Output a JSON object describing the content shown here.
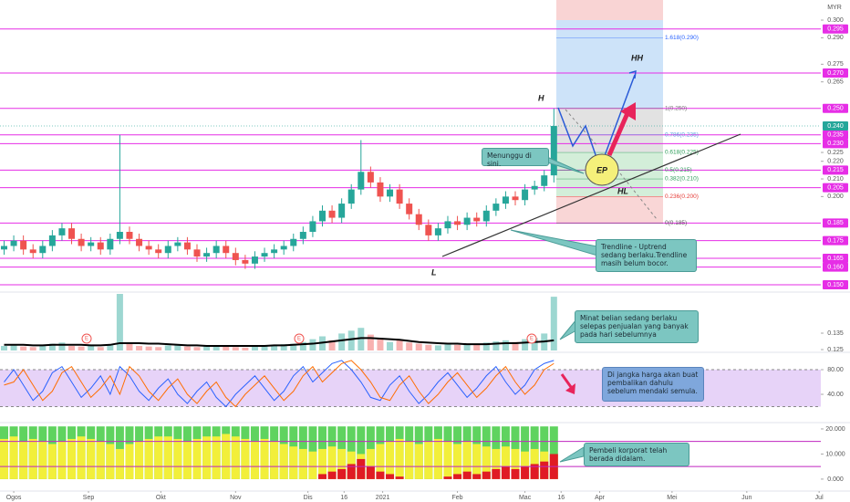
{
  "chart_data": [
    {
      "type": "candlestick",
      "currency": "MYR",
      "x": [
        -4,
        0,
        4,
        8,
        12,
        16,
        20,
        24,
        28,
        32,
        36,
        40,
        44,
        48,
        52,
        56,
        60,
        64,
        68,
        72,
        76,
        80,
        84,
        88,
        92,
        96,
        100,
        104,
        108,
        112,
        116,
        120,
        124,
        128,
        132,
        136,
        140,
        144,
        148,
        152,
        156,
        160,
        164,
        168,
        172,
        176,
        180,
        184,
        188,
        192,
        196,
        200,
        204,
        208,
        212,
        216,
        220,
        224
      ],
      "open": [
        0.17,
        0.172,
        0.175,
        0.17,
        0.168,
        0.172,
        0.178,
        0.182,
        0.176,
        0.172,
        0.174,
        0.17,
        0.176,
        0.18,
        0.176,
        0.172,
        0.17,
        0.168,
        0.172,
        0.174,
        0.17,
        0.166,
        0.168,
        0.172,
        0.168,
        0.164,
        0.162,
        0.166,
        0.168,
        0.17,
        0.172,
        0.176,
        0.18,
        0.186,
        0.192,
        0.188,
        0.196,
        0.204,
        0.214,
        0.208,
        0.2,
        0.204,
        0.196,
        0.19,
        0.184,
        0.178,
        0.182,
        0.186,
        0.184,
        0.188,
        0.186,
        0.192,
        0.196,
        0.2,
        0.198,
        0.204,
        0.206,
        0.212
      ],
      "high": [
        0.175,
        0.178,
        0.178,
        0.173,
        0.175,
        0.181,
        0.185,
        0.185,
        0.179,
        0.177,
        0.177,
        0.179,
        0.235,
        0.183,
        0.179,
        0.175,
        0.173,
        0.175,
        0.177,
        0.177,
        0.173,
        0.171,
        0.175,
        0.175,
        0.171,
        0.167,
        0.169,
        0.171,
        0.173,
        0.175,
        0.179,
        0.183,
        0.189,
        0.195,
        0.195,
        0.199,
        0.207,
        0.232,
        0.217,
        0.211,
        0.207,
        0.207,
        0.199,
        0.193,
        0.187,
        0.185,
        0.189,
        0.189,
        0.191,
        0.191,
        0.195,
        0.199,
        0.203,
        0.203,
        0.207,
        0.209,
        0.215,
        0.25
      ],
      "low": [
        0.167,
        0.169,
        0.167,
        0.165,
        0.165,
        0.169,
        0.175,
        0.173,
        0.169,
        0.169,
        0.167,
        0.167,
        0.173,
        0.173,
        0.169,
        0.167,
        0.165,
        0.165,
        0.169,
        0.167,
        0.163,
        0.163,
        0.165,
        0.165,
        0.161,
        0.159,
        0.159,
        0.163,
        0.165,
        0.167,
        0.169,
        0.173,
        0.177,
        0.183,
        0.185,
        0.185,
        0.193,
        0.201,
        0.205,
        0.197,
        0.197,
        0.193,
        0.187,
        0.181,
        0.175,
        0.175,
        0.179,
        0.181,
        0.181,
        0.183,
        0.183,
        0.189,
        0.193,
        0.195,
        0.195,
        0.201,
        0.203,
        0.208
      ],
      "close": [
        0.172,
        0.175,
        0.17,
        0.168,
        0.172,
        0.178,
        0.182,
        0.176,
        0.172,
        0.174,
        0.17,
        0.176,
        0.18,
        0.176,
        0.172,
        0.17,
        0.168,
        0.172,
        0.174,
        0.17,
        0.166,
        0.168,
        0.172,
        0.168,
        0.164,
        0.162,
        0.166,
        0.168,
        0.17,
        0.172,
        0.176,
        0.18,
        0.186,
        0.192,
        0.188,
        0.196,
        0.204,
        0.214,
        0.208,
        0.2,
        0.204,
        0.196,
        0.19,
        0.184,
        0.178,
        0.182,
        0.186,
        0.184,
        0.188,
        0.186,
        0.192,
        0.196,
        0.2,
        0.198,
        0.204,
        0.206,
        0.212,
        0.24
      ],
      "up_color": "#26a69a",
      "down_color": "#ef5350",
      "xlim": [
        -5.7,
        334.7
      ],
      "xticks": [
        {
          "value": 0,
          "label": "Ogos"
        },
        {
          "value": 31,
          "label": "Sep"
        },
        {
          "value": 61,
          "label": "Okt"
        },
        {
          "value": 92,
          "label": "Nov"
        },
        {
          "value": 122,
          "label": "Dis"
        },
        {
          "value": 137,
          "label": "16"
        },
        {
          "value": 153,
          "label": "2021"
        },
        {
          "value": 184,
          "label": "Feb"
        },
        {
          "value": 212,
          "label": "Mac"
        },
        {
          "value": 227,
          "label": "16"
        },
        {
          "value": 243,
          "label": "Apr"
        },
        {
          "value": 273,
          "label": "Mei"
        },
        {
          "value": 304,
          "label": "Jun"
        },
        {
          "value": 334,
          "label": "Jul"
        }
      ],
      "ylim": [
        0.1469,
        0.3114
      ],
      "yticks": [
        {
          "value": 0.3,
          "label": "0.300"
        },
        {
          "value": 0.29,
          "label": "0.290"
        },
        {
          "value": 0.275,
          "label": "0.275"
        },
        {
          "value": 0.265,
          "label": "0.265"
        },
        {
          "value": 0.225,
          "label": "0.225"
        },
        {
          "value": 0.22,
          "label": "0.220"
        },
        {
          "value": 0.21,
          "label": "0.210"
        },
        {
          "value": 0.2,
          "label": "0.200"
        }
      ],
      "levels": [
        {
          "value": 0.295,
          "label": "0.295"
        },
        {
          "value": 0.27,
          "label": "0.270"
        },
        {
          "value": 0.25,
          "label": "0.250"
        },
        {
          "value": 0.235,
          "label": "0.235"
        },
        {
          "value": 0.23,
          "label": "0.230"
        },
        {
          "value": 0.215,
          "label": "0.215"
        },
        {
          "value": 0.205,
          "label": "0.205"
        },
        {
          "value": 0.185,
          "label": "0.185"
        },
        {
          "value": 0.175,
          "label": "0.175"
        },
        {
          "value": 0.165,
          "label": "0.165"
        },
        {
          "value": 0.16,
          "label": "0.160"
        },
        {
          "value": 0.15,
          "label": "0.150"
        }
      ],
      "level_color": "#e62ee6",
      "last_price": {
        "value": 0.24,
        "label": "0.240"
      },
      "fib_levels": [
        {
          "value": 0.29,
          "label": "1.618(0.290)"
        },
        {
          "value": 0.25,
          "label": "1(0.250)"
        },
        {
          "value": 0.235,
          "label": "0.786(0.235)"
        },
        {
          "value": 0.225,
          "label": "0.618(0.225)"
        },
        {
          "value": 0.215,
          "label": "0.5(0.215)"
        },
        {
          "value": 0.21,
          "label": "0.382(0.210)"
        },
        {
          "value": 0.2,
          "label": "0.236(0.200)"
        },
        {
          "value": 0.185,
          "label": "0(0.185)"
        }
      ],
      "annotations": [
        "H",
        "HH",
        "EP",
        "HL",
        "L",
        "Menunggu di sini.",
        "Trendline - Uptrend sedang berlaku.Trendline masih belum bocor."
      ]
    },
    {
      "type": "volume",
      "values": [
        8,
        10,
        7,
        6,
        9,
        12,
        14,
        8,
        7,
        9,
        6,
        10,
        100,
        12,
        8,
        7,
        6,
        9,
        10,
        7,
        6,
        8,
        9,
        7,
        6,
        5,
        8,
        9,
        10,
        11,
        12,
        15,
        20,
        25,
        18,
        30,
        35,
        40,
        28,
        20,
        15,
        18,
        14,
        12,
        10,
        9,
        11,
        10,
        12,
        11,
        14,
        16,
        18,
        15,
        20,
        22,
        30,
        95
      ],
      "ylim": [
        0,
        100
      ],
      "ma": {
        "color": "#000000",
        "values": [
          10,
          10,
          10,
          9,
          9,
          10,
          10,
          10,
          10,
          9,
          9,
          10,
          13,
          13,
          13,
          12,
          12,
          11,
          10,
          9,
          9,
          8,
          8,
          8,
          8,
          8,
          8,
          8,
          9,
          9,
          10,
          11,
          12,
          14,
          16,
          18,
          20,
          22,
          22,
          21,
          20,
          19,
          17,
          15,
          14,
          13,
          12,
          12,
          11,
          11,
          11,
          12,
          13,
          13,
          14,
          15,
          16,
          18
        ]
      },
      "price_ylim": [
        0.1239,
        0.1589
      ],
      "price_yticks": [
        {
          "value": 0.135,
          "label": "0.135"
        },
        {
          "value": 0.125,
          "label": "0.125"
        }
      ],
      "event_markers": [
        "E",
        "E",
        "E"
      ],
      "annotations": [
        "Minat belian sedang berlaku selepas penjualan yang banyak pada hari sebelumnya"
      ]
    },
    {
      "type": "stochastic",
      "ylim": [
        -4.4,
        105.2
      ],
      "yticks": [
        {
          "value": 80,
          "label": "80.00"
        },
        {
          "value": 40,
          "label": "40.00"
        }
      ],
      "band": [
        20,
        80
      ],
      "band_color": "#e7d3f8",
      "series": [
        {
          "color": "#2962ff",
          "values": [
            60,
            80,
            55,
            30,
            45,
            75,
            85,
            60,
            35,
            50,
            70,
            40,
            85,
            70,
            45,
            30,
            50,
            65,
            40,
            25,
            45,
            60,
            35,
            20,
            40,
            55,
            70,
            50,
            30,
            45,
            70,
            85,
            60,
            75,
            90,
            95,
            80,
            60,
            35,
            30,
            55,
            70,
            45,
            25,
            40,
            60,
            75,
            55,
            35,
            50,
            70,
            85,
            60,
            40,
            55,
            80,
            90,
            95
          ]
        },
        {
          "color": "#ff6d00",
          "values": [
            55,
            60,
            80,
            55,
            30,
            45,
            75,
            85,
            60,
            35,
            50,
            70,
            40,
            85,
            70,
            45,
            30,
            50,
            65,
            40,
            25,
            45,
            60,
            35,
            20,
            40,
            55,
            70,
            50,
            30,
            45,
            70,
            85,
            60,
            75,
            90,
            95,
            80,
            60,
            35,
            30,
            55,
            70,
            45,
            25,
            40,
            60,
            75,
            55,
            35,
            50,
            70,
            85,
            60,
            40,
            55,
            80,
            90
          ]
        }
      ],
      "annotations": [
        "Di jangka harga akan buat pembalikan dahulu sebelum mendaki semula."
      ]
    },
    {
      "type": "histogram",
      "ylim": [
        -4.4,
        21.8
      ],
      "yticks": [
        {
          "value": 20,
          "label": "20.000"
        },
        {
          "value": 10,
          "label": "10.000"
        },
        {
          "value": 0,
          "label": "0.000"
        }
      ],
      "levels": [
        15,
        5
      ],
      "level_color": "#c026c0",
      "series": [
        {
          "color": "#5fd35f",
          "values": [
            21,
            21,
            21,
            21,
            21,
            21,
            21,
            21,
            21,
            21,
            21,
            21,
            21,
            21,
            21,
            21,
            21,
            21,
            21,
            21,
            21,
            21,
            21,
            21,
            21,
            21,
            21,
            21,
            21,
            21,
            21,
            21,
            21,
            21,
            21,
            21,
            21,
            21,
            21,
            21,
            21,
            21,
            21,
            21,
            21,
            21,
            21,
            21,
            21,
            21,
            21,
            21,
            21,
            21,
            21,
            21,
            21,
            21
          ]
        },
        {
          "color": "#f2ef3a",
          "values": [
            16,
            17,
            15,
            16,
            15,
            14,
            15,
            16,
            17,
            16,
            15,
            14,
            12,
            14,
            15,
            16,
            17,
            17,
            16,
            15,
            16,
            17,
            17,
            18,
            17,
            16,
            15,
            16,
            15,
            14,
            13,
            12,
            11,
            12,
            13,
            12,
            11,
            10,
            12,
            14,
            15,
            16,
            15,
            14,
            15,
            16,
            15,
            14,
            15,
            14,
            13,
            12,
            13,
            12,
            11,
            12,
            11,
            9
          ]
        },
        {
          "color": "#e01b24",
          "values": [
            0,
            0,
            0,
            0,
            0,
            0,
            0,
            0,
            0,
            0,
            0,
            0,
            0,
            0,
            0,
            0,
            0,
            0,
            0,
            0,
            0,
            0,
            0,
            0,
            0,
            0,
            0,
            0,
            0,
            0,
            0,
            0,
            0,
            2,
            3,
            4,
            6,
            8,
            5,
            3,
            2,
            1,
            0,
            0,
            0,
            0,
            1,
            2,
            3,
            2,
            3,
            4,
            5,
            4,
            5,
            6,
            7,
            10
          ]
        }
      ],
      "annotations": [
        "Pembeli korporat telah berada didalam."
      ]
    }
  ]
}
